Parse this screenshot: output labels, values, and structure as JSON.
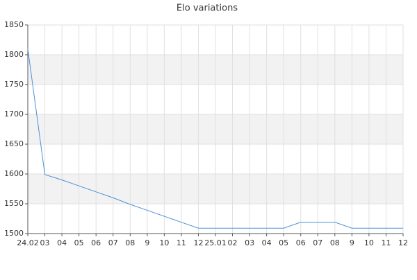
{
  "chart_data": {
    "type": "line",
    "title": "Elo variations",
    "categories": [
      "24.02",
      "03",
      "04",
      "05",
      "06",
      "07",
      "08",
      "9",
      "10",
      "11",
      "12",
      "25.01",
      "02",
      "03",
      "04",
      "05",
      "06",
      "07",
      "08",
      "9",
      "10",
      "11",
      "12"
    ],
    "values": [
      1810,
      1599,
      1590,
      1580,
      1570,
      1560,
      1549,
      1539,
      1529,
      1519,
      1509,
      1509,
      1509,
      1509,
      1509,
      1509,
      1519,
      1519,
      1519,
      1509,
      1509,
      1509,
      1509
    ],
    "color": "#4a90d9",
    "ylim": [
      1500,
      1850
    ],
    "yticks": [
      1500,
      1550,
      1600,
      1650,
      1700,
      1750,
      1800,
      1850
    ],
    "grid": true,
    "band_color": "#f2f2f2"
  }
}
